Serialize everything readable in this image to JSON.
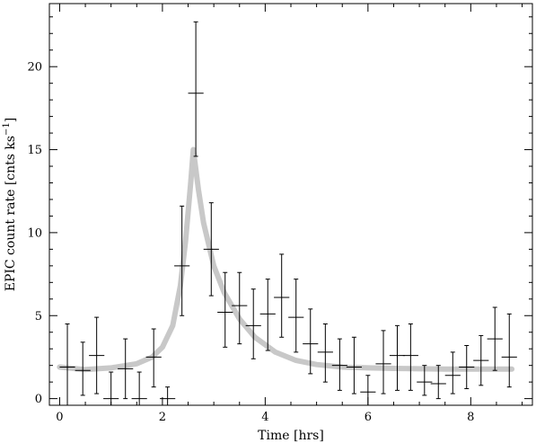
{
  "chart_data": {
    "type": "scatter",
    "title": "",
    "xlabel": "Time [hrs]",
    "ylabel_main": "EPIC count rate [cnts ks",
    "ylabel_sup": "−1",
    "ylabel_close": "]",
    "xlim": [
      -0.2,
      9.2
    ],
    "ylim": [
      -0.4,
      23.8
    ],
    "xticks": [
      0,
      2,
      4,
      6,
      8
    ],
    "yticks": [
      0,
      5,
      10,
      15,
      20
    ],
    "xtick_labels": [
      "0",
      "2",
      "4",
      "6",
      "8"
    ],
    "ytick_labels": [
      "0",
      "5",
      "10",
      "15",
      "20"
    ],
    "grid": false,
    "colors": {
      "data": "#000000",
      "model": "#c8c8c8",
      "frame": "#000000"
    },
    "series": [
      {
        "kind": "errorbar",
        "points": [
          {
            "x": 0.15,
            "xerr": 0.15,
            "y": 1.9,
            "ylo": -0.4,
            "yhi": 4.5
          },
          {
            "x": 0.45,
            "xerr": 0.15,
            "y": 1.7,
            "ylo": 0.2,
            "yhi": 3.4
          },
          {
            "x": 0.72,
            "xerr": 0.15,
            "y": 2.6,
            "ylo": 0.3,
            "yhi": 4.9
          },
          {
            "x": 1.0,
            "xerr": 0.15,
            "y": 0.0,
            "ylo": -0.4,
            "yhi": 1.6
          },
          {
            "x": 1.28,
            "xerr": 0.15,
            "y": 1.8,
            "ylo": 0.0,
            "yhi": 3.6
          },
          {
            "x": 1.55,
            "xerr": 0.15,
            "y": 0.0,
            "ylo": -0.4,
            "yhi": 1.6
          },
          {
            "x": 1.83,
            "xerr": 0.15,
            "y": 2.5,
            "ylo": 0.7,
            "yhi": 4.2
          },
          {
            "x": 2.1,
            "xerr": 0.15,
            "y": 0.0,
            "ylo": -0.4,
            "yhi": 0.7
          },
          {
            "x": 2.38,
            "xerr": 0.15,
            "y": 8.0,
            "ylo": 5.0,
            "yhi": 11.6
          },
          {
            "x": 2.65,
            "xerr": 0.15,
            "y": 18.4,
            "ylo": 14.6,
            "yhi": 22.7
          },
          {
            "x": 2.95,
            "xerr": 0.15,
            "y": 9.0,
            "ylo": 6.2,
            "yhi": 11.8
          },
          {
            "x": 3.22,
            "xerr": 0.15,
            "y": 5.2,
            "ylo": 3.1,
            "yhi": 7.6
          },
          {
            "x": 3.5,
            "xerr": 0.15,
            "y": 5.6,
            "ylo": 3.3,
            "yhi": 7.6
          },
          {
            "x": 3.77,
            "xerr": 0.15,
            "y": 4.4,
            "ylo": 2.4,
            "yhi": 6.6
          },
          {
            "x": 4.05,
            "xerr": 0.15,
            "y": 5.1,
            "ylo": 2.9,
            "yhi": 7.2
          },
          {
            "x": 4.32,
            "xerr": 0.15,
            "y": 6.1,
            "ylo": 3.7,
            "yhi": 8.7
          },
          {
            "x": 4.6,
            "xerr": 0.15,
            "y": 4.9,
            "ylo": 2.8,
            "yhi": 7.2
          },
          {
            "x": 4.88,
            "xerr": 0.15,
            "y": 3.3,
            "ylo": 1.5,
            "yhi": 5.4
          },
          {
            "x": 5.17,
            "xerr": 0.15,
            "y": 2.8,
            "ylo": 1.0,
            "yhi": 4.5
          },
          {
            "x": 5.45,
            "xerr": 0.15,
            "y": 2.0,
            "ylo": 0.5,
            "yhi": 3.6
          },
          {
            "x": 5.73,
            "xerr": 0.15,
            "y": 1.9,
            "ylo": 0.3,
            "yhi": 3.7
          },
          {
            "x": 6.0,
            "xerr": 0.15,
            "y": 0.4,
            "ylo": -0.4,
            "yhi": 1.4
          },
          {
            "x": 6.3,
            "xerr": 0.15,
            "y": 2.1,
            "ylo": 0.3,
            "yhi": 4.1
          },
          {
            "x": 6.57,
            "xerr": 0.15,
            "y": 2.6,
            "ylo": 0.5,
            "yhi": 4.4
          },
          {
            "x": 6.83,
            "xerr": 0.15,
            "y": 2.6,
            "ylo": 0.5,
            "yhi": 4.5
          },
          {
            "x": 7.1,
            "xerr": 0.15,
            "y": 1.0,
            "ylo": 0.2,
            "yhi": 2.0
          },
          {
            "x": 7.37,
            "xerr": 0.15,
            "y": 0.9,
            "ylo": 0.0,
            "yhi": 2.0
          },
          {
            "x": 7.65,
            "xerr": 0.15,
            "y": 1.4,
            "ylo": 0.3,
            "yhi": 2.8
          },
          {
            "x": 7.92,
            "xerr": 0.15,
            "y": 1.9,
            "ylo": 0.6,
            "yhi": 3.2
          },
          {
            "x": 8.2,
            "xerr": 0.15,
            "y": 2.3,
            "ylo": 0.8,
            "yhi": 3.8
          },
          {
            "x": 8.47,
            "xerr": 0.15,
            "y": 3.6,
            "ylo": 1.7,
            "yhi": 5.5
          },
          {
            "x": 8.75,
            "xerr": 0.15,
            "y": 2.5,
            "ylo": 0.7,
            "yhi": 5.1
          }
        ]
      },
      {
        "kind": "model-line",
        "x": [
          0.0,
          0.5,
          1.0,
          1.5,
          1.8,
          2.0,
          2.2,
          2.35,
          2.45,
          2.55,
          2.6,
          2.7,
          2.8,
          3.0,
          3.2,
          3.5,
          3.8,
          4.2,
          4.6,
          5.0,
          5.5,
          6.0,
          6.5,
          7.0,
          7.5,
          8.0,
          8.5,
          8.8
        ],
        "y": [
          1.9,
          1.75,
          1.85,
          2.1,
          2.5,
          3.1,
          4.4,
          6.8,
          9.5,
          13.0,
          15.0,
          12.6,
          10.6,
          8.0,
          6.4,
          4.8,
          3.7,
          2.8,
          2.3,
          2.05,
          1.9,
          1.85,
          1.82,
          1.8,
          1.78,
          1.78,
          1.78,
          1.78
        ]
      }
    ]
  }
}
